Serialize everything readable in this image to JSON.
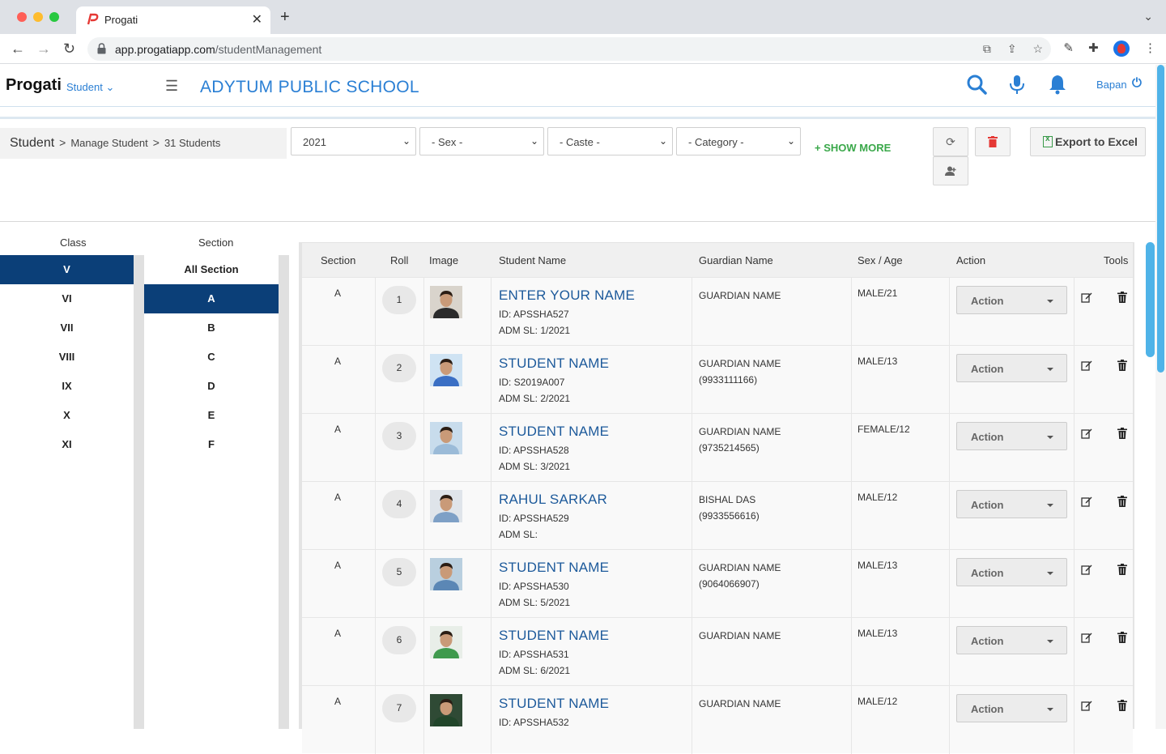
{
  "browser": {
    "tab_title": "Progati",
    "url_host": "app.progatiapp.com",
    "url_path": "/studentManagement"
  },
  "header": {
    "brand": "Progati",
    "module": "Student",
    "school_name": "ADYTUM PUBLIC SCHOOL",
    "username": "Bapan",
    "accent_color": "#2a7fd4"
  },
  "breadcrumb": {
    "root": "Student",
    "page": "Manage Student",
    "count": "31 Students"
  },
  "filters": {
    "year": "2021",
    "sex": "- Sex -",
    "caste": "- Caste -",
    "category": "- Category -",
    "show_more": "+ SHOW MORE",
    "export": "Export to Excel"
  },
  "classes": {
    "heading": "Class",
    "items": [
      "V",
      "VI",
      "VII",
      "VIII",
      "IX",
      "X",
      "XI"
    ],
    "selected": "V"
  },
  "sections": {
    "heading": "Section",
    "items": [
      "All Section",
      "A",
      "B",
      "C",
      "D",
      "E",
      "F"
    ],
    "selected": "A"
  },
  "table": {
    "columns": [
      "Section",
      "Roll",
      "Image",
      "Student Name",
      "Guardian Name",
      "Sex / Age",
      "Action",
      "Tools"
    ],
    "action_label": "Action",
    "rows": [
      {
        "section": "A",
        "roll": "1",
        "name": "ENTER YOUR NAME",
        "id": "ID: APSSHA527",
        "adm": "ADM SL: 1/2021",
        "guardian": "GUARDIAN NAME",
        "guardian_phone": "",
        "sex_age": "MALE/21",
        "photo_bg": "#d9d4cc",
        "photo_shirt": "#2b2b2b"
      },
      {
        "section": "A",
        "roll": "2",
        "name": "STUDENT NAME",
        "id": "ID: S2019A007",
        "adm": "ADM SL: 2/2021",
        "guardian": "GUARDIAN NAME",
        "guardian_phone": "(9933111166)",
        "sex_age": "MALE/13",
        "photo_bg": "#cfe3f3",
        "photo_shirt": "#3a6fc4"
      },
      {
        "section": "A",
        "roll": "3",
        "name": "STUDENT NAME",
        "id": "ID: APSSHA528",
        "adm": "ADM SL: 3/2021",
        "guardian": "GUARDIAN NAME",
        "guardian_phone": "(9735214565)",
        "sex_age": "FEMALE/12",
        "photo_bg": "#c8dcec",
        "photo_shirt": "#9bbbd8"
      },
      {
        "section": "A",
        "roll": "4",
        "name": "RAHUL SARKAR",
        "id": "ID: APSSHA529",
        "adm": "ADM SL:",
        "guardian": "BISHAL DAS",
        "guardian_phone": "(9933556616)",
        "sex_age": "MALE/12",
        "photo_bg": "#dfe4ea",
        "photo_shirt": "#7ea0c6"
      },
      {
        "section": "A",
        "roll": "5",
        "name": "STUDENT NAME",
        "id": "ID: APSSHA530",
        "adm": "ADM SL: 5/2021",
        "guardian": "GUARDIAN NAME",
        "guardian_phone": "(9064066907)",
        "sex_age": "MALE/13",
        "photo_bg": "#b9cfdf",
        "photo_shirt": "#5b87b5"
      },
      {
        "section": "A",
        "roll": "6",
        "name": "STUDENT NAME",
        "id": "ID: APSSHA531",
        "adm": "ADM SL: 6/2021",
        "guardian": "GUARDIAN NAME",
        "guardian_phone": "",
        "sex_age": "MALE/13",
        "photo_bg": "#e8eee8",
        "photo_shirt": "#3f9a4d"
      },
      {
        "section": "A",
        "roll": "7",
        "name": "STUDENT NAME",
        "id": "ID: APSSHA532",
        "adm": "",
        "guardian": "GUARDIAN NAME",
        "guardian_phone": "",
        "sex_age": "MALE/12",
        "photo_bg": "#2f4a35",
        "photo_shirt": "#21452a"
      }
    ]
  }
}
